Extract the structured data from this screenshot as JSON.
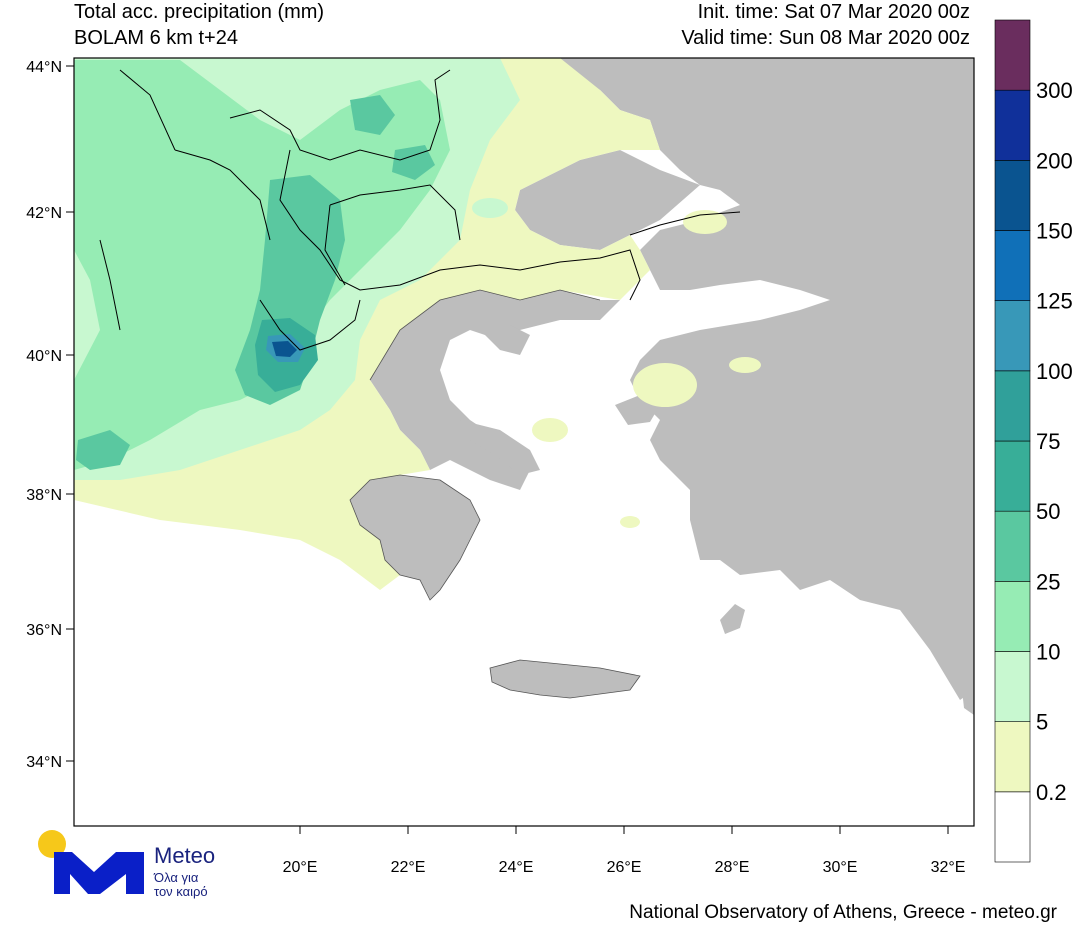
{
  "header": {
    "title_line1": "Total acc. precipitation (mm)",
    "title_line2": "BOLAM 6 km t+24",
    "init_time": "Init. time: Sat 07 Mar 2020 00z",
    "valid_time": "Valid time: Sun 08 Mar 2020 00z"
  },
  "axes": {
    "lat_labels": [
      "44°N",
      "42°N",
      "40°N",
      "38°N",
      "36°N",
      "34°N"
    ],
    "lon_labels": [
      "20°E",
      "22°E",
      "24°E",
      "26°E",
      "28°E",
      "30°E",
      "32°E"
    ]
  },
  "legend": {
    "levels": [
      "0.2",
      "5",
      "10",
      "25",
      "50",
      "75",
      "100",
      "125",
      "150",
      "200",
      "300"
    ],
    "colors": [
      "#ffffff",
      "#eef8c0",
      "#c8f8d0",
      "#96ecb4",
      "#5ac8a0",
      "#38ae98",
      "#30a09a",
      "#3898b8",
      "#1070b8",
      "#0a5490",
      "#10309a",
      "#6a2d5e"
    ]
  },
  "logo": {
    "name": "Meteo",
    "tagline1": "Όλα για",
    "tagline2": "τον καιρό"
  },
  "footer": {
    "credit": "National Observatory of Athens, Greece - meteo.gr"
  },
  "colors": {
    "land_gray": "#bdbdbd",
    "sea": "#ffffff",
    "frame": "#000000"
  }
}
